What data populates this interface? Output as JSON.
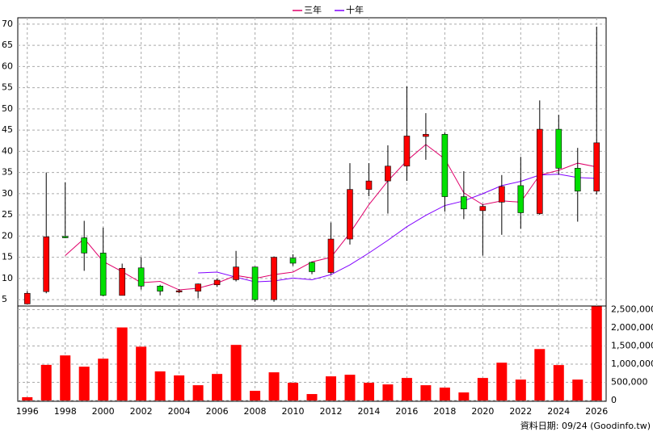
{
  "chart_data": [
    {
      "type": "candlestick",
      "x": [
        1996,
        1997,
        1998,
        1999,
        2000,
        2001,
        2002,
        2003,
        2004,
        2005,
        2006,
        2007,
        2008,
        2009,
        2010,
        2011,
        2012,
        2013,
        2014,
        2015,
        2016,
        2017,
        2018,
        2019,
        2020,
        2021,
        2022,
        2023,
        2024,
        2025,
        2026
      ],
      "open": [
        4,
        6.9,
        19.9,
        19.6,
        16,
        6,
        12.5,
        8.2,
        7,
        7,
        8.5,
        9.7,
        12.7,
        5,
        14.8,
        13.8,
        11.4,
        19.3,
        31,
        33,
        36.5,
        43.5,
        44,
        29.3,
        26,
        28,
        31.9,
        25.3,
        45.2,
        36,
        30.6
      ],
      "high": [
        7,
        35,
        32.7,
        23.6,
        22,
        13.5,
        15,
        8.5,
        7.5,
        8.8,
        10,
        16.5,
        12.8,
        15.2,
        15.7,
        14,
        23.2,
        37.2,
        37.2,
        41.4,
        55.3,
        49,
        44.5,
        35.3,
        27.5,
        34.4,
        38.7,
        52,
        48.6,
        40.8,
        69.4
      ],
      "low": [
        4,
        6.5,
        19.5,
        11.8,
        5.8,
        6,
        7.4,
        6,
        6.5,
        5.3,
        8,
        9.3,
        4.5,
        4.5,
        13,
        11,
        11,
        18,
        29.4,
        25.3,
        33,
        38,
        25.8,
        24,
        15.4,
        20.3,
        21.7,
        25,
        34.5,
        23.4,
        29.8
      ],
      "close": [
        6.5,
        19.8,
        19.6,
        16,
        6,
        12.4,
        8.2,
        7,
        7.1,
        8.7,
        9.6,
        12.7,
        5,
        15,
        13.6,
        11.6,
        19.3,
        31,
        33,
        36.5,
        43.6,
        44,
        29.3,
        26.4,
        27,
        31.7,
        25.5,
        45.2,
        36,
        30.6,
        42
      ],
      "up_color": "#ff0000",
      "down_color": "#00e000",
      "series": [
        {
          "name": "三年",
          "color": "#e0006a",
          "values": [
            null,
            null,
            15.4,
            19.4,
            14,
            11.6,
            9,
            9.3,
            7.3,
            7.7,
            8.9,
            10.7,
            10,
            10.9,
            11.5,
            13.9,
            15,
            20.7,
            27.4,
            33,
            37.8,
            41.6,
            38.2,
            30.2,
            27.4,
            28.3,
            28,
            34.4,
            35.5,
            37.2,
            36.3
          ]
        },
        {
          "name": "十年",
          "color": "#8000ff",
          "values": [
            null,
            null,
            null,
            null,
            null,
            null,
            null,
            null,
            null,
            11.3,
            11.5,
            10.3,
            9.2,
            9.4,
            10.1,
            9.7,
            10.9,
            13.2,
            16,
            19,
            22.2,
            24.9,
            27.2,
            28.3,
            30,
            31.9,
            32.9,
            34.4,
            34.6,
            33.8,
            33.6
          ]
        }
      ],
      "xlim": [
        1995.5,
        2026.5
      ],
      "xticks": [
        1996,
        1998,
        2000,
        2002,
        2004,
        2006,
        2008,
        2010,
        2012,
        2014,
        2016,
        2018,
        2020,
        2022,
        2024,
        2026
      ],
      "ylim": [
        3.5,
        71.5
      ],
      "yticks": [
        5,
        10,
        15,
        20,
        25,
        30,
        35,
        40,
        45,
        50,
        55,
        60,
        65,
        70
      ],
      "grid": true
    },
    {
      "type": "bar",
      "x": [
        1996,
        1997,
        1998,
        1999,
        2000,
        2001,
        2002,
        2003,
        2004,
        2005,
        2006,
        2007,
        2008,
        2009,
        2010,
        2011,
        2012,
        2013,
        2014,
        2015,
        2016,
        2017,
        2018,
        2019,
        2020,
        2021,
        2022,
        2023,
        2024,
        2025,
        2026
      ],
      "values": [
        90000,
        980000,
        1240000,
        930000,
        1150000,
        2010000,
        1480000,
        800000,
        690000,
        420000,
        730000,
        1530000,
        265000,
        775000,
        487000,
        177000,
        664000,
        708000,
        487000,
        442000,
        620000,
        420000,
        354000,
        221000,
        620000,
        1040000,
        575000,
        1416000,
        975000,
        575000,
        2590000
      ],
      "color": "#ff0000",
      "xlim": [
        1995.5,
        2026.5
      ],
      "ylim": [
        0,
        2600000
      ],
      "yticks": [
        0,
        {
          "value": 500000,
          "label": "500,000"
        },
        {
          "value": 1000000,
          "label": "1,000,000"
        },
        {
          "value": 1500000,
          "label": "1,500,000"
        },
        {
          "value": 2000000,
          "label": "2,000,000"
        },
        {
          "value": 2500000,
          "label": "2,500,000"
        }
      ],
      "grid": true
    }
  ],
  "footer": "資料日期: 09/24 (Goodinfo.tw)"
}
